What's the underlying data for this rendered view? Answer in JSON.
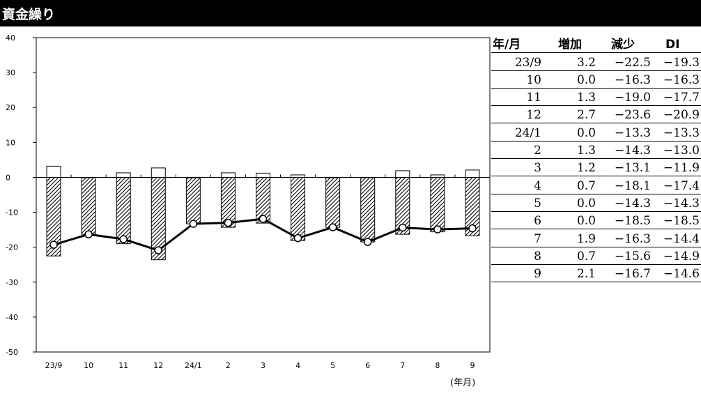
{
  "title": "資金繰り",
  "x_unit": "(年月)",
  "colors": {
    "title_bg": "#000000",
    "title_fg": "#ffffff",
    "bar_fill": "#ffffff",
    "line": "#000000"
  },
  "table": {
    "headers": [
      "年/月",
      "増加",
      "減少",
      "DI"
    ],
    "rows": [
      [
        "23/9",
        "3.2",
        "−22.5",
        "−19.3"
      ],
      [
        "10",
        "0.0",
        "−16.3",
        "−16.3"
      ],
      [
        "11",
        "1.3",
        "−19.0",
        "−17.7"
      ],
      [
        "12",
        "2.7",
        "−23.6",
        "−20.9"
      ],
      [
        "24/1",
        "0.0",
        "−13.3",
        "−13.3"
      ],
      [
        "2",
        "1.3",
        "−14.3",
        "−13.0"
      ],
      [
        "3",
        "1.2",
        "−13.1",
        "−11.9"
      ],
      [
        "4",
        "0.7",
        "−18.1",
        "−17.4"
      ],
      [
        "5",
        "0.0",
        "−14.3",
        "−14.3"
      ],
      [
        "6",
        "0.0",
        "−18.5",
        "−18.5"
      ],
      [
        "7",
        "1.9",
        "−16.3",
        "−14.4"
      ],
      [
        "8",
        "0.7",
        "−15.6",
        "−14.9"
      ],
      [
        "9",
        "2.1",
        "−16.7",
        "−14.6"
      ]
    ]
  },
  "chart_data": {
    "type": "bar",
    "categories": [
      "23/9",
      "10",
      "11",
      "12",
      "24/1",
      "2",
      "3",
      "4",
      "5",
      "6",
      "7",
      "8",
      "9"
    ],
    "series": [
      {
        "name": "増加",
        "kind": "bar",
        "pattern": "outline",
        "values": [
          3.2,
          0.0,
          1.3,
          2.7,
          0.0,
          1.3,
          1.2,
          0.7,
          0.0,
          0.0,
          1.9,
          0.7,
          2.1
        ]
      },
      {
        "name": "減少",
        "kind": "bar",
        "pattern": "diagonal-hatch",
        "values": [
          -22.5,
          -16.3,
          -19.0,
          -23.6,
          -13.3,
          -14.3,
          -13.1,
          -18.1,
          -14.3,
          -18.5,
          -16.3,
          -15.6,
          -16.7
        ]
      },
      {
        "name": "DI",
        "kind": "line",
        "marker": "circle",
        "values": [
          -19.3,
          -16.3,
          -17.7,
          -20.9,
          -13.3,
          -13.0,
          -11.9,
          -17.4,
          -14.3,
          -18.5,
          -14.4,
          -14.9,
          -14.6
        ]
      }
    ],
    "ylim": [
      -50,
      40
    ],
    "yticks": [
      40,
      30,
      20,
      10,
      0,
      -10,
      -20,
      -30,
      -40,
      -50
    ],
    "grid": false,
    "xlabel": "",
    "ylabel": ""
  }
}
